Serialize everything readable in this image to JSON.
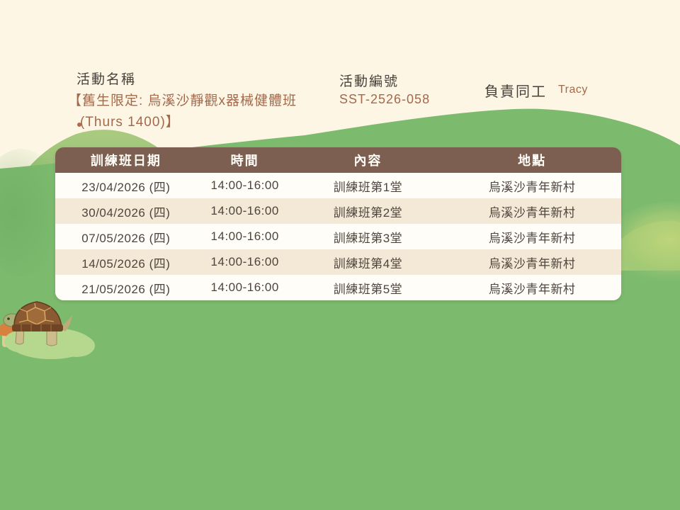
{
  "page": {
    "background_color": "#fdf6e4",
    "hill_color": "#7cba6e",
    "light_hill_color": "#a2c87e",
    "accent_brown": "#7d5f51",
    "text_brown": "#a3694c",
    "text_dark": "#48413b"
  },
  "header": {
    "activity_name_label": "活動名稱",
    "activity_name_line1": "【舊生限定: 烏溪沙靜觀x器械健體班",
    "activity_name_line2": "(Thurs 1400)】",
    "activity_code_label": "活動編號",
    "activity_code_value": "SST-2526-058",
    "staff_label": "負責同工",
    "staff_value": "Tracy"
  },
  "table": {
    "columns": [
      "訓練班日期",
      "時間",
      "內容",
      "地點"
    ],
    "rows": [
      [
        "23/04/2026 (四)",
        "14:00-16:00",
        "訓練班第1堂",
        "烏溪沙青年新村"
      ],
      [
        "30/04/2026 (四)",
        "14:00-16:00",
        "訓練班第2堂",
        "烏溪沙青年新村"
      ],
      [
        "07/05/2026 (四)",
        "14:00-16:00",
        "訓練班第3堂",
        "烏溪沙青年新村"
      ],
      [
        "14/05/2026 (四)",
        "14:00-16:00",
        "訓練班第4堂",
        "烏溪沙青年新村"
      ],
      [
        "21/05/2026 (四)",
        "14:00-16:00",
        "訓練班第5堂",
        "烏溪沙青年新村"
      ]
    ],
    "header_bg": "#7d5f51",
    "row_bg": "#fffdf7",
    "row_alt_bg": "#f4e9d7"
  },
  "illustration": {
    "description": "turtle-on-grass-mound"
  }
}
